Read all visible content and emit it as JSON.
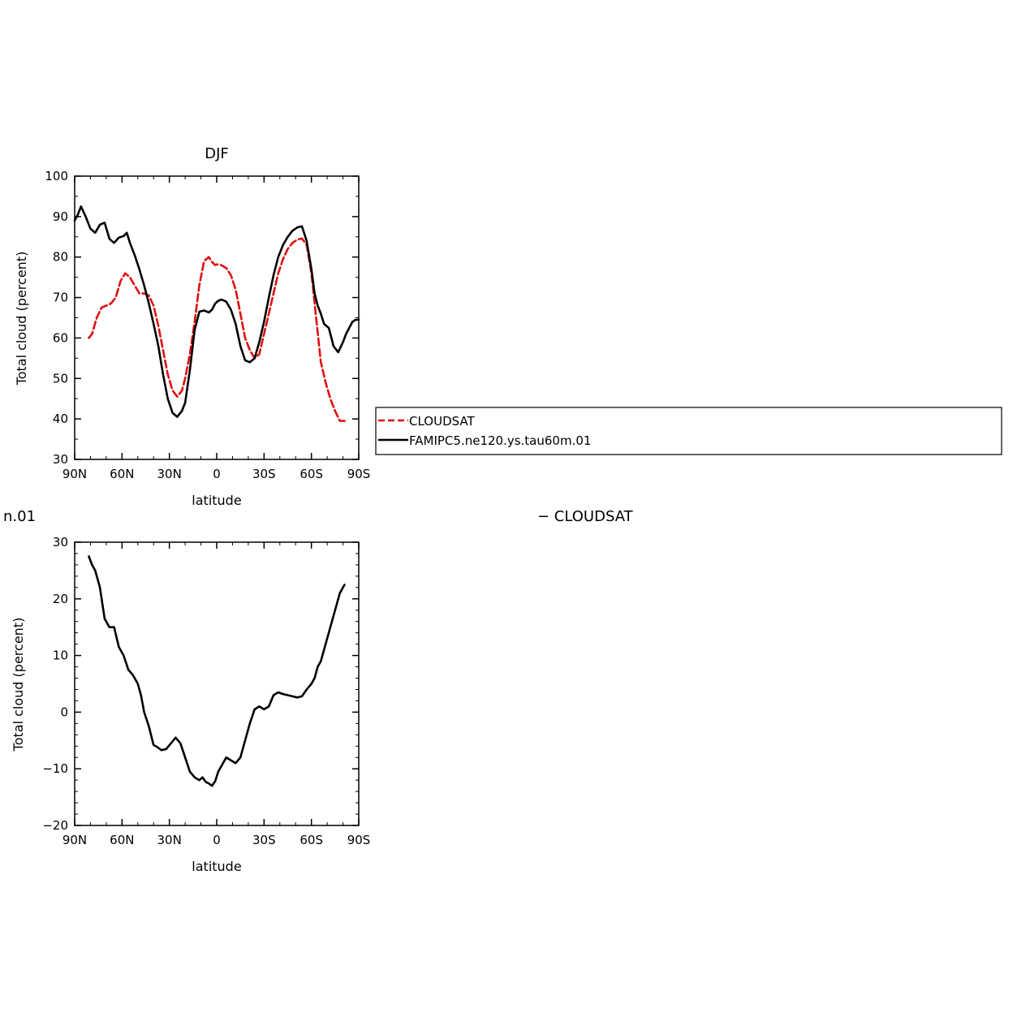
{
  "chart_data": [
    {
      "type": "line",
      "title": "DJF",
      "xlabel": "latitude",
      "ylabel": "Total cloud (percent)",
      "xlim": [
        90,
        -90
      ],
      "ylim": [
        30,
        100
      ],
      "x_tick_values": [
        90,
        60,
        30,
        0,
        -30,
        -60,
        -90
      ],
      "x_tick_labels": [
        "90N",
        "60N",
        "30N",
        "0",
        "30S",
        "60S",
        "90S"
      ],
      "y_tick_values": [
        30,
        40,
        50,
        60,
        70,
        80,
        90,
        100
      ],
      "y_tick_labels": [
        "30",
        "40",
        "50",
        "60",
        "70",
        "80",
        "90",
        "100"
      ],
      "legend_position": "right",
      "series": [
        {
          "name": "CLOUDSAT",
          "color": "#e01010",
          "dash": "dashed",
          "x": [
            81,
            79,
            76,
            73,
            70,
            67,
            64,
            61,
            58,
            55,
            52,
            49,
            46,
            43,
            40,
            37,
            34,
            31,
            28,
            25,
            22,
            20,
            17,
            14,
            11,
            8,
            5,
            3,
            1,
            0,
            -3,
            -6,
            -9,
            -12,
            -15,
            -18,
            -21,
            -24,
            -27,
            -30,
            -33,
            -36,
            -39,
            -42,
            -45,
            -48,
            -51,
            -54,
            -57,
            -60,
            -63,
            -66,
            -69,
            -72,
            -75,
            -78,
            -81
          ],
          "y": [
            60,
            61,
            65,
            67.5,
            68,
            68.5,
            70,
            74,
            76,
            75,
            73,
            71,
            71,
            70.5,
            68,
            63,
            57,
            51,
            47,
            45.5,
            47,
            50,
            56,
            64,
            73,
            79,
            80,
            78.8,
            78,
            78.2,
            78,
            77.3,
            75.5,
            72,
            66,
            60,
            57,
            55,
            56,
            61,
            66,
            71,
            76,
            79.5,
            82,
            83.5,
            84.3,
            84.6,
            83,
            76,
            65,
            54,
            49,
            45,
            42,
            39.5,
            39.5
          ]
        },
        {
          "name": "FAMIPC5.ne120.ys.tau60m.01",
          "color": "#000000",
          "dash": "solid",
          "x": [
            90,
            88,
            86,
            83,
            80,
            77,
            74,
            71,
            68,
            65,
            62,
            59,
            57,
            55,
            52,
            49,
            46,
            43,
            40,
            37,
            34,
            31,
            28,
            25,
            22,
            20,
            17,
            14,
            11,
            8,
            5,
            3,
            1,
            -1,
            -3,
            -6,
            -9,
            -12,
            -15,
            -18,
            -21,
            -24,
            -27,
            -30,
            -33,
            -36,
            -39,
            -42,
            -45,
            -48,
            -51,
            -54,
            -57,
            -60,
            -62,
            -64,
            -66,
            -68,
            -71,
            -74,
            -77,
            -80,
            -82,
            -84,
            -86,
            -88,
            -90
          ],
          "y": [
            89,
            90.5,
            92.5,
            90,
            87,
            86,
            88,
            88.5,
            84.5,
            83.5,
            84.8,
            85.2,
            86,
            83.5,
            80.5,
            77,
            73,
            68.5,
            63.5,
            58,
            51,
            45,
            41.5,
            40.5,
            42,
            44,
            52,
            62,
            66.5,
            66.8,
            66.3,
            67,
            68.5,
            69.2,
            69.5,
            69,
            67,
            63.5,
            58,
            54.5,
            54,
            55,
            59,
            64,
            70,
            75.5,
            80,
            83,
            85,
            86.5,
            87.3,
            87.6,
            84,
            77,
            71,
            68,
            66,
            63.5,
            62.5,
            58,
            56.5,
            59,
            61,
            62.5,
            64,
            64.5,
            64.5
          ]
        }
      ]
    },
    {
      "type": "line",
      "title": "",
      "xlabel": "latitude",
      "ylabel": "Total cloud (percent)",
      "xlim": [
        90,
        -90
      ],
      "ylim": [
        -20,
        30
      ],
      "x_tick_values": [
        90,
        60,
        30,
        0,
        -30,
        -60,
        -90
      ],
      "x_tick_labels": [
        "90N",
        "60N",
        "30N",
        "0",
        "30S",
        "60S",
        "90S"
      ],
      "y_tick_values": [
        -20,
        -10,
        0,
        10,
        20,
        30
      ],
      "y_tick_labels": [
        "−20",
        "−10",
        "0",
        "10",
        "20",
        "30"
      ],
      "series": [
        {
          "color": "#000000",
          "dash": "solid",
          "x": [
            81,
            79,
            77,
            74,
            71,
            68,
            65,
            62,
            59,
            56,
            53,
            50,
            48,
            46,
            43,
            40,
            38,
            35,
            32,
            29,
            26,
            23,
            20,
            17,
            14,
            11,
            9,
            7,
            5,
            3,
            1,
            -1,
            -3,
            -6,
            -9,
            -12,
            -15,
            -18,
            -21,
            -24,
            -27,
            -30,
            -33,
            -36,
            -39,
            -42,
            -45,
            -48,
            -51,
            -54,
            -57,
            -60,
            -62,
            -64,
            -66,
            -68,
            -70,
            -72,
            -74,
            -76,
            -78,
            -80,
            -81
          ],
          "y": [
            27.5,
            26,
            25,
            22,
            16.5,
            15,
            15,
            11.5,
            10,
            7.5,
            6.5,
            5,
            3,
            0,
            -2.5,
            -5.8,
            -6.1,
            -6.7,
            -6.5,
            -5.5,
            -4.5,
            -5.5,
            -8,
            -10.5,
            -11.5,
            -12,
            -11.5,
            -12.3,
            -12.6,
            -13,
            -12.2,
            -10.5,
            -9.5,
            -8,
            -8.5,
            -9,
            -8,
            -5,
            -2,
            0.5,
            1,
            0.5,
            1,
            3,
            3.5,
            3.2,
            3,
            2.8,
            2.6,
            2.8,
            4,
            5,
            6,
            8,
            9,
            11,
            13,
            15,
            17,
            19,
            21,
            22,
            22.5
          ]
        }
      ]
    }
  ],
  "legend": {
    "entries": [
      "CLOUDSAT",
      "FAMIPC5.ne120.ys.tau60m.01"
    ]
  },
  "annotations": {
    "left_clipped_text": "n.01",
    "right_text": "−  CLOUDSAT"
  }
}
